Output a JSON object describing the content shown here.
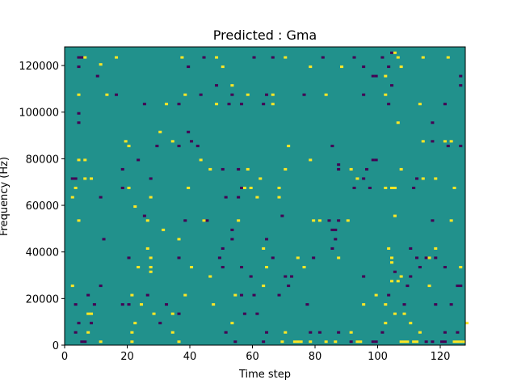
{
  "chart_data": {
    "type": "heatmap",
    "title": "Predicted : Gma",
    "xlabel": "Time step",
    "ylabel": "Frequency (Hz)",
    "xlim": [
      0,
      128
    ],
    "ylim": [
      0,
      128000
    ],
    "x_ticks": [
      0,
      20,
      40,
      60,
      80,
      100,
      120
    ],
    "y_ticks": [
      0,
      20000,
      40000,
      60000,
      80000,
      100000,
      120000
    ],
    "y_tick_labels": [
      "0",
      "20000",
      "40000",
      "60000",
      "80000",
      "100000",
      "120000"
    ],
    "grid": false,
    "colormap": "viridis",
    "value_levels": [
      -1,
      0,
      1
    ],
    "colors": {
      "low": "#440154",
      "mid": "#21918c",
      "high": "#fde725",
      "frame": "#000000"
    },
    "rows": 128,
    "cols": 128,
    "cells": [
      [
        4,
        123,
        -1
      ],
      [
        5,
        123,
        -1
      ],
      [
        6,
        123,
        1
      ],
      [
        11,
        120,
        1
      ],
      [
        16,
        123,
        1
      ],
      [
        37,
        123,
        1
      ],
      [
        44,
        123,
        -1
      ],
      [
        48,
        123,
        1
      ],
      [
        60,
        123,
        -1
      ],
      [
        66,
        123,
        -1
      ],
      [
        70,
        123,
        1
      ],
      [
        82,
        123,
        -1
      ],
      [
        92,
        123,
        -1
      ],
      [
        101,
        123,
        -1
      ],
      [
        106,
        123,
        1
      ],
      [
        114,
        123,
        1
      ],
      [
        122,
        123,
        1
      ],
      [
        104,
        125,
        -1
      ],
      [
        105,
        125,
        1
      ],
      [
        4,
        119,
        -1
      ],
      [
        39,
        119,
        -1
      ],
      [
        50,
        119,
        1
      ],
      [
        78,
        119,
        1
      ],
      [
        88,
        119,
        1
      ],
      [
        95,
        119,
        -1
      ],
      [
        103,
        119,
        -1
      ],
      [
        107,
        119,
        1
      ],
      [
        10,
        115,
        -1
      ],
      [
        99,
        115,
        -1
      ],
      [
        98,
        115,
        -1
      ],
      [
        102,
        115,
        1
      ],
      [
        126,
        115,
        -1
      ],
      [
        48,
        111,
        -1
      ],
      [
        53,
        111,
        1
      ],
      [
        104,
        111,
        -1
      ],
      [
        126,
        111,
        -1
      ],
      [
        4,
        107,
        1
      ],
      [
        13,
        107,
        1
      ],
      [
        16,
        107,
        -1
      ],
      [
        38,
        107,
        1
      ],
      [
        43,
        107,
        -1
      ],
      [
        53,
        107,
        -1
      ],
      [
        58,
        107,
        1
      ],
      [
        64,
        107,
        -1
      ],
      [
        66,
        107,
        1
      ],
      [
        76,
        107,
        -1
      ],
      [
        83,
        107,
        1
      ],
      [
        95,
        107,
        -1
      ],
      [
        102,
        107,
        1
      ],
      [
        25,
        103,
        -1
      ],
      [
        32,
        103,
        1
      ],
      [
        36,
        103,
        -1
      ],
      [
        48,
        103,
        1
      ],
      [
        52,
        103,
        -1
      ],
      [
        56,
        103,
        -1
      ],
      [
        63,
        103,
        -1
      ],
      [
        66,
        103,
        1
      ],
      [
        103,
        103,
        -1
      ],
      [
        113,
        103,
        1
      ],
      [
        121,
        103,
        -1
      ],
      [
        4,
        99,
        -1
      ],
      [
        4,
        95,
        -1
      ],
      [
        106,
        95,
        1
      ],
      [
        117,
        95,
        -1
      ],
      [
        30,
        91,
        1
      ],
      [
        39,
        91,
        -1
      ],
      [
        19,
        87,
        1
      ],
      [
        34,
        87,
        1
      ],
      [
        40,
        87,
        -1
      ],
      [
        114,
        87,
        1
      ],
      [
        117,
        87,
        -1
      ],
      [
        121,
        87,
        1
      ],
      [
        123,
        87,
        1
      ],
      [
        20,
        85,
        1
      ],
      [
        29,
        85,
        -1
      ],
      [
        36,
        85,
        -1
      ],
      [
        42,
        85,
        -1
      ],
      [
        71,
        85,
        1
      ],
      [
        85,
        85,
        -1
      ],
      [
        122,
        85,
        -1
      ],
      [
        126,
        85,
        -1
      ],
      [
        4,
        79,
        1
      ],
      [
        6,
        79,
        1
      ],
      [
        23,
        79,
        -1
      ],
      [
        43,
        79,
        1
      ],
      [
        78,
        79,
        1
      ],
      [
        98,
        79,
        -1
      ],
      [
        99,
        79,
        -1
      ],
      [
        87,
        77,
        -1
      ],
      [
        18,
        75,
        -1
      ],
      [
        46,
        75,
        1
      ],
      [
        50,
        75,
        -1
      ],
      [
        55,
        75,
        -1
      ],
      [
        58,
        75,
        1
      ],
      [
        70,
        75,
        1
      ],
      [
        87,
        75,
        -1
      ],
      [
        91,
        75,
        1
      ],
      [
        96,
        75,
        -1
      ],
      [
        107,
        75,
        1
      ],
      [
        2,
        71,
        -1
      ],
      [
        3,
        71,
        -1
      ],
      [
        6,
        71,
        1
      ],
      [
        8,
        71,
        1
      ],
      [
        27,
        71,
        -1
      ],
      [
        62,
        71,
        1
      ],
      [
        93,
        71,
        1
      ],
      [
        95,
        71,
        -1
      ],
      [
        112,
        71,
        -1
      ],
      [
        114,
        71,
        1
      ],
      [
        118,
        71,
        1
      ],
      [
        3,
        67,
        1
      ],
      [
        18,
        67,
        -1
      ],
      [
        20,
        67,
        1
      ],
      [
        39,
        67,
        1
      ],
      [
        56,
        67,
        -1
      ],
      [
        57,
        67,
        1
      ],
      [
        59,
        67,
        1
      ],
      [
        68,
        67,
        1
      ],
      [
        92,
        67,
        -1
      ],
      [
        97,
        67,
        -1
      ],
      [
        102,
        67,
        1
      ],
      [
        104,
        67,
        1
      ],
      [
        105,
        67,
        1
      ],
      [
        111,
        67,
        -1
      ],
      [
        124,
        67,
        1
      ],
      [
        2,
        63,
        1
      ],
      [
        11,
        63,
        -1
      ],
      [
        27,
        63,
        1
      ],
      [
        51,
        63,
        -1
      ],
      [
        55,
        63,
        -1
      ],
      [
        61,
        63,
        1
      ],
      [
        68,
        63,
        1
      ],
      [
        22,
        59,
        1
      ],
      [
        25,
        55,
        -1
      ],
      [
        38,
        53,
        -1
      ],
      [
        44,
        53,
        -1
      ],
      [
        45,
        53,
        -1
      ],
      [
        69,
        55,
        -1
      ],
      [
        81,
        53,
        1
      ],
      [
        87,
        53,
        -1
      ],
      [
        90,
        53,
        1
      ],
      [
        4,
        53,
        1
      ],
      [
        26,
        53,
        1
      ],
      [
        44,
        53,
        1
      ],
      [
        55,
        53,
        1
      ],
      [
        79,
        53,
        1
      ],
      [
        84,
        53,
        -1
      ],
      [
        105,
        55,
        1
      ],
      [
        117,
        53,
        -1
      ],
      [
        123,
        53,
        1
      ],
      [
        31,
        49,
        1
      ],
      [
        53,
        49,
        -1
      ],
      [
        85,
        49,
        -1
      ],
      [
        86,
        49,
        -1
      ],
      [
        36,
        45,
        1
      ],
      [
        64,
        45,
        -1
      ],
      [
        86,
        45,
        -1
      ],
      [
        12,
        45,
        -1
      ],
      [
        53,
        45,
        -1
      ],
      [
        26,
        41,
        1
      ],
      [
        50,
        41,
        -1
      ],
      [
        63,
        41,
        1
      ],
      [
        85,
        41,
        -1
      ],
      [
        103,
        41,
        1
      ],
      [
        110,
        41,
        -1
      ],
      [
        118,
        41,
        1
      ],
      [
        20,
        37,
        -1
      ],
      [
        27,
        37,
        1
      ],
      [
        36,
        37,
        -1
      ],
      [
        49,
        37,
        -1
      ],
      [
        66,
        37,
        -1
      ],
      [
        74,
        37,
        1
      ],
      [
        79,
        37,
        -1
      ],
      [
        87,
        37,
        1
      ],
      [
        104,
        37,
        1
      ],
      [
        112,
        37,
        -1
      ],
      [
        115,
        37,
        -1
      ],
      [
        116,
        37,
        1
      ],
      [
        118,
        37,
        -1
      ],
      [
        23,
        33,
        1
      ],
      [
        27,
        33,
        1
      ],
      [
        40,
        33,
        1
      ],
      [
        50,
        33,
        -1
      ],
      [
        56,
        33,
        -1
      ],
      [
        64,
        33,
        1
      ],
      [
        76,
        33,
        1
      ],
      [
        104,
        35,
        1
      ],
      [
        113,
        33,
        -1
      ],
      [
        121,
        33,
        -1
      ],
      [
        126,
        33,
        1
      ],
      [
        27,
        31,
        1
      ],
      [
        46,
        29,
        1
      ],
      [
        59,
        29,
        -1
      ],
      [
        70,
        29,
        -1
      ],
      [
        72,
        29,
        -1
      ],
      [
        95,
        29,
        -1
      ],
      [
        107,
        29,
        1
      ],
      [
        105,
        31,
        -1
      ],
      [
        110,
        29,
        -1
      ],
      [
        2,
        25,
        1
      ],
      [
        11,
        25,
        -1
      ],
      [
        63,
        25,
        1
      ],
      [
        71,
        25,
        -1
      ],
      [
        109,
        25,
        -1
      ],
      [
        116,
        25,
        1
      ],
      [
        125,
        25,
        -1
      ],
      [
        126,
        25,
        -1
      ],
      [
        104,
        27,
        1
      ],
      [
        106,
        27,
        1
      ],
      [
        7,
        21,
        -1
      ],
      [
        21,
        21,
        1
      ],
      [
        26,
        21,
        -1
      ],
      [
        38,
        21,
        1
      ],
      [
        54,
        21,
        1
      ],
      [
        56,
        21,
        -1
      ],
      [
        60,
        21,
        -1
      ],
      [
        68,
        21,
        -1
      ],
      [
        99,
        21,
        1
      ],
      [
        103,
        21,
        -1
      ],
      [
        3,
        17,
        -1
      ],
      [
        9,
        17,
        -1
      ],
      [
        18,
        17,
        -1
      ],
      [
        20,
        17,
        -1
      ],
      [
        24,
        17,
        1
      ],
      [
        32,
        17,
        -1
      ],
      [
        47,
        17,
        1
      ],
      [
        77,
        17,
        -1
      ],
      [
        95,
        17,
        1
      ],
      [
        102,
        17,
        1
      ],
      [
        108,
        17,
        -1
      ],
      [
        118,
        17,
        -1
      ],
      [
        123,
        17,
        -1
      ],
      [
        8,
        13,
        1
      ],
      [
        28,
        13,
        1
      ],
      [
        34,
        13,
        1
      ],
      [
        57,
        13,
        -1
      ],
      [
        108,
        13,
        1
      ],
      [
        105,
        13,
        1
      ],
      [
        61,
        13,
        -1
      ],
      [
        36,
        13,
        -1
      ],
      [
        7,
        13,
        1
      ],
      [
        4,
        9,
        -1
      ],
      [
        8,
        9,
        -1
      ],
      [
        30,
        9,
        -1
      ],
      [
        22,
        9,
        1
      ],
      [
        53,
        9,
        1
      ],
      [
        102,
        9,
        1
      ],
      [
        128,
        9,
        1
      ],
      [
        3,
        5,
        -1
      ],
      [
        7,
        5,
        1
      ],
      [
        21,
        5,
        1
      ],
      [
        34,
        5,
        1
      ],
      [
        51,
        5,
        -1
      ],
      [
        64,
        5,
        -1
      ],
      [
        70,
        5,
        1
      ],
      [
        78,
        5,
        -1
      ],
      [
        81,
        5,
        -1
      ],
      [
        87,
        5,
        -1
      ],
      [
        91,
        5,
        1
      ],
      [
        101,
        5,
        -1
      ],
      [
        113,
        5,
        1
      ],
      [
        121,
        5,
        -1
      ],
      [
        125,
        5,
        -1
      ],
      [
        110,
        9,
        1
      ],
      [
        5,
        1,
        -1
      ],
      [
        6,
        1,
        -1
      ],
      [
        11,
        1,
        1
      ],
      [
        21,
        1,
        1
      ],
      [
        36,
        1,
        1
      ],
      [
        54,
        1,
        -1
      ],
      [
        63,
        1,
        -1
      ],
      [
        69,
        1,
        1
      ],
      [
        73,
        1,
        1
      ],
      [
        74,
        1,
        1
      ],
      [
        75,
        1,
        1
      ],
      [
        78,
        1,
        1
      ],
      [
        83,
        1,
        1
      ],
      [
        86,
        1,
        1
      ],
      [
        91,
        1,
        -1
      ],
      [
        93,
        1,
        1
      ],
      [
        94,
        1,
        1
      ],
      [
        98,
        1,
        -1
      ],
      [
        99,
        1,
        -1
      ],
      [
        107,
        1,
        1
      ],
      [
        108,
        1,
        1
      ],
      [
        109,
        1,
        1
      ],
      [
        111,
        1,
        1
      ],
      [
        112,
        1,
        1
      ],
      [
        115,
        1,
        -1
      ],
      [
        117,
        1,
        -1
      ],
      [
        120,
        1,
        -1
      ],
      [
        121,
        1,
        -1
      ],
      [
        124,
        1,
        1
      ],
      [
        125,
        1,
        1
      ],
      [
        126,
        1,
        1
      ],
      [
        127,
        1,
        1
      ]
    ]
  }
}
